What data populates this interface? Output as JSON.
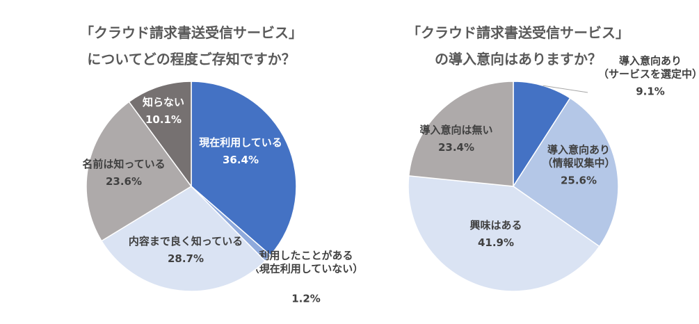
{
  "chart_data": [
    {
      "type": "pie",
      "title": [
        "「クラウド請求書送受信サービス」",
        "についてどの程度ご存知ですか？"
      ],
      "slices": [
        {
          "label": [
            "現在利用している"
          ],
          "value": 36.4,
          "value_label": "36.4%",
          "color": "#4472C4",
          "text_color": "#ffffff"
        },
        {
          "label": [
            "利用したことがある",
            "（現在利用していない）"
          ],
          "value": 1.2,
          "value_label": "1.2%",
          "color": "#8FAADC",
          "text_color": "#404040"
        },
        {
          "label": [
            "内容まで良く知っている"
          ],
          "value": 28.7,
          "value_label": "28.7%",
          "color": "#DAE3F3",
          "text_color": "#404040"
        },
        {
          "label": [
            "名前は知っている"
          ],
          "value": 23.6,
          "value_label": "23.6%",
          "color": "#AEAAAA",
          "text_color": "#404040"
        },
        {
          "label": [
            "知らない"
          ],
          "value": 10.1,
          "value_label": "10.1%",
          "color": "#767171",
          "text_color": "#ffffff"
        }
      ]
    },
    {
      "type": "pie",
      "title": [
        "「クラウド請求書送受信サービス」",
        "の導入意向はありますか？"
      ],
      "slices": [
        {
          "label": [
            "導入意向あり",
            "（サービスを選定中）"
          ],
          "value": 9.1,
          "value_label": "9.1%",
          "color": "#4472C4",
          "text_color": "#404040"
        },
        {
          "label": [
            "導入意向あり",
            "（情報収集中）"
          ],
          "value": 25.6,
          "value_label": "25.6%",
          "color": "#B4C7E7",
          "text_color": "#404040"
        },
        {
          "label": [
            "興味はある"
          ],
          "value": 41.9,
          "value_label": "41.9%",
          "color": "#DAE3F3",
          "text_color": "#404040"
        },
        {
          "label": [
            "導入意向は無い"
          ],
          "value": 23.4,
          "value_label": "23.4%",
          "color": "#AEAAAA",
          "text_color": "#404040"
        }
      ]
    }
  ]
}
